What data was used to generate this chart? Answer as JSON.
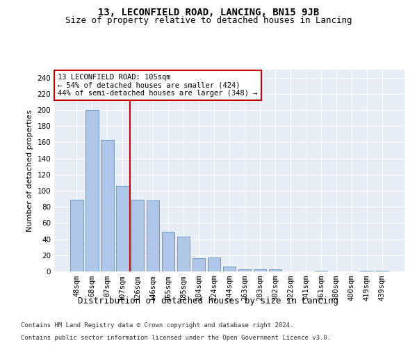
{
  "title": "13, LECONFIELD ROAD, LANCING, BN15 9JB",
  "subtitle": "Size of property relative to detached houses in Lancing",
  "xlabel": "Distribution of detached houses by size in Lancing",
  "ylabel": "Number of detached properties",
  "categories": [
    "48sqm",
    "68sqm",
    "87sqm",
    "107sqm",
    "126sqm",
    "146sqm",
    "165sqm",
    "185sqm",
    "204sqm",
    "224sqm",
    "244sqm",
    "263sqm",
    "283sqm",
    "302sqm",
    "322sqm",
    "341sqm",
    "361sqm",
    "380sqm",
    "400sqm",
    "419sqm",
    "439sqm"
  ],
  "values": [
    89,
    200,
    163,
    106,
    89,
    88,
    49,
    43,
    16,
    17,
    6,
    3,
    3,
    3,
    0,
    0,
    1,
    0,
    0,
    1,
    1
  ],
  "bar_color": "#aec6e8",
  "bar_edge_color": "#5a8fc2",
  "vline_index": 3,
  "vline_color": "#cc0000",
  "annotation_text": "13 LECONFIELD ROAD: 105sqm\n← 54% of detached houses are smaller (424)\n44% of semi-detached houses are larger (348) →",
  "annotation_box_color": "#ffffff",
  "annotation_box_edge": "#cc0000",
  "ylim": [
    0,
    250
  ],
  "yticks": [
    0,
    20,
    40,
    60,
    80,
    100,
    120,
    140,
    160,
    180,
    200,
    220,
    240
  ],
  "background_color": "#e8eef7",
  "footer_line1": "Contains HM Land Registry data © Crown copyright and database right 2024.",
  "footer_line2": "Contains public sector information licensed under the Open Government Licence v3.0.",
  "title_fontsize": 10,
  "subtitle_fontsize": 9,
  "xlabel_fontsize": 9,
  "ylabel_fontsize": 8,
  "tick_fontsize": 7.5,
  "annotation_fontsize": 7.5,
  "footer_fontsize": 6.5
}
